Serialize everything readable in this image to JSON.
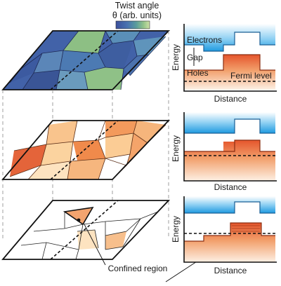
{
  "colorbar": {
    "title_line1": "Twist angle",
    "title_line2": "θ (arb. units)",
    "colors": [
      "#3b4f9c",
      "#4a74b0",
      "#5a9c9c",
      "#93c38a",
      "#cfe1a6"
    ]
  },
  "panels": {
    "top": {
      "ylabel": "Energy",
      "xlabel": "Distance",
      "labels": {
        "electrons": "Electrons",
        "gap": "Gap",
        "holes": "Holes",
        "fermi": "Fermi level"
      }
    },
    "middle": {
      "ylabel": "Energy",
      "xlabel": "Distance"
    },
    "bottom": {
      "ylabel": "Energy",
      "xlabel": "Distance"
    }
  },
  "annotation": {
    "confined_region": "Confined region"
  },
  "colors": {
    "electron_band": "#35a6e6",
    "hole_band": "#e96437",
    "hole_region_fill": "#f3a46f",
    "domain_orange": "#f08a4b",
    "domain_light": "#f9c48d",
    "domain_dark": "#e2643a"
  }
}
